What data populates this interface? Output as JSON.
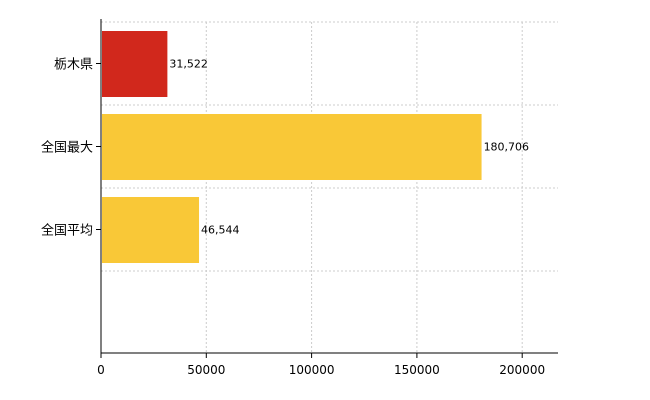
{
  "chart_data": {
    "type": "bar",
    "orientation": "horizontal",
    "categories": [
      "栃木県",
      "全国最大",
      "全国平均"
    ],
    "values": [
      31522,
      180706,
      46544
    ],
    "value_labels": [
      "31,522",
      "180,706",
      "46,544"
    ],
    "colors": [
      "#d1281c",
      "#f9c837",
      "#f9c837"
    ],
    "x_ticks": [
      "0",
      "50000",
      "100000",
      "150000",
      "200000"
    ],
    "xlim": [
      0,
      217000
    ],
    "grid": true,
    "legend": "none",
    "title": "",
    "xlabel": "",
    "ylabel": ""
  }
}
